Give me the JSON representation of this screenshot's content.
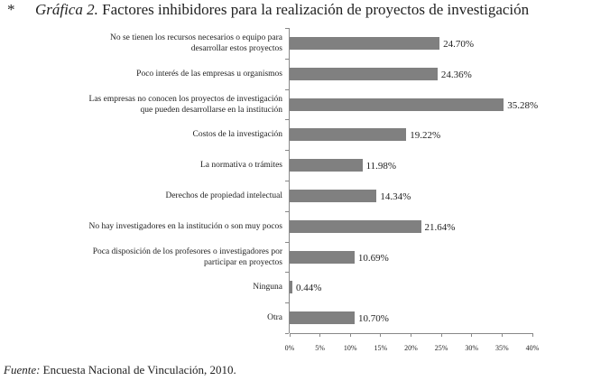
{
  "chart_data": {
    "type": "bar",
    "orientation": "horizontal",
    "title_marker": "*",
    "title_label": "Gráfica 2.",
    "title": "Factores inhibidores para la realización de proyectos de investigación",
    "source_label": "Fuente:",
    "source": "Encuesta Nacional de Vinculación, 2010.",
    "categories": [
      "No se tienen los recursos necesarios o equipo para\ndesarrollar estos proyectos",
      "Poco interés de las empresas u organismos",
      "Las empresas no conocen los proyectos de investigación\nque pueden desarrollarse en la institución",
      "Costos de la investigación",
      "La normativa o trámites",
      "Derechos de propiedad intelectual",
      "No hay investigadores en la institución o son muy pocos",
      "Poca disposición de los profesores o investigadores por\nparticipar en proyectos",
      "Ninguna",
      "Otra"
    ],
    "values": [
      24.7,
      24.36,
      35.28,
      19.22,
      11.98,
      14.34,
      21.64,
      10.69,
      0.44,
      10.7
    ],
    "value_labels": [
      "24.70%",
      "24.36%",
      "35.28%",
      "19.22%",
      "11.98%",
      "14.34%",
      "21.64%",
      "10.69%",
      "0.44%",
      "10.70%"
    ],
    "color": "#808080",
    "xlim": [
      0,
      40
    ],
    "xticks": [
      {
        "value": 0,
        "label": "0%"
      },
      {
        "value": 5,
        "label": "5%"
      },
      {
        "value": 10,
        "label": "10%"
      },
      {
        "value": 15,
        "label": "15%"
      },
      {
        "value": 20,
        "label": "20%"
      },
      {
        "value": 25,
        "label": "25%"
      },
      {
        "value": 30,
        "label": "30%"
      },
      {
        "value": 35,
        "label": "35%"
      },
      {
        "value": 40,
        "label": "40%"
      }
    ],
    "grid": false
  }
}
